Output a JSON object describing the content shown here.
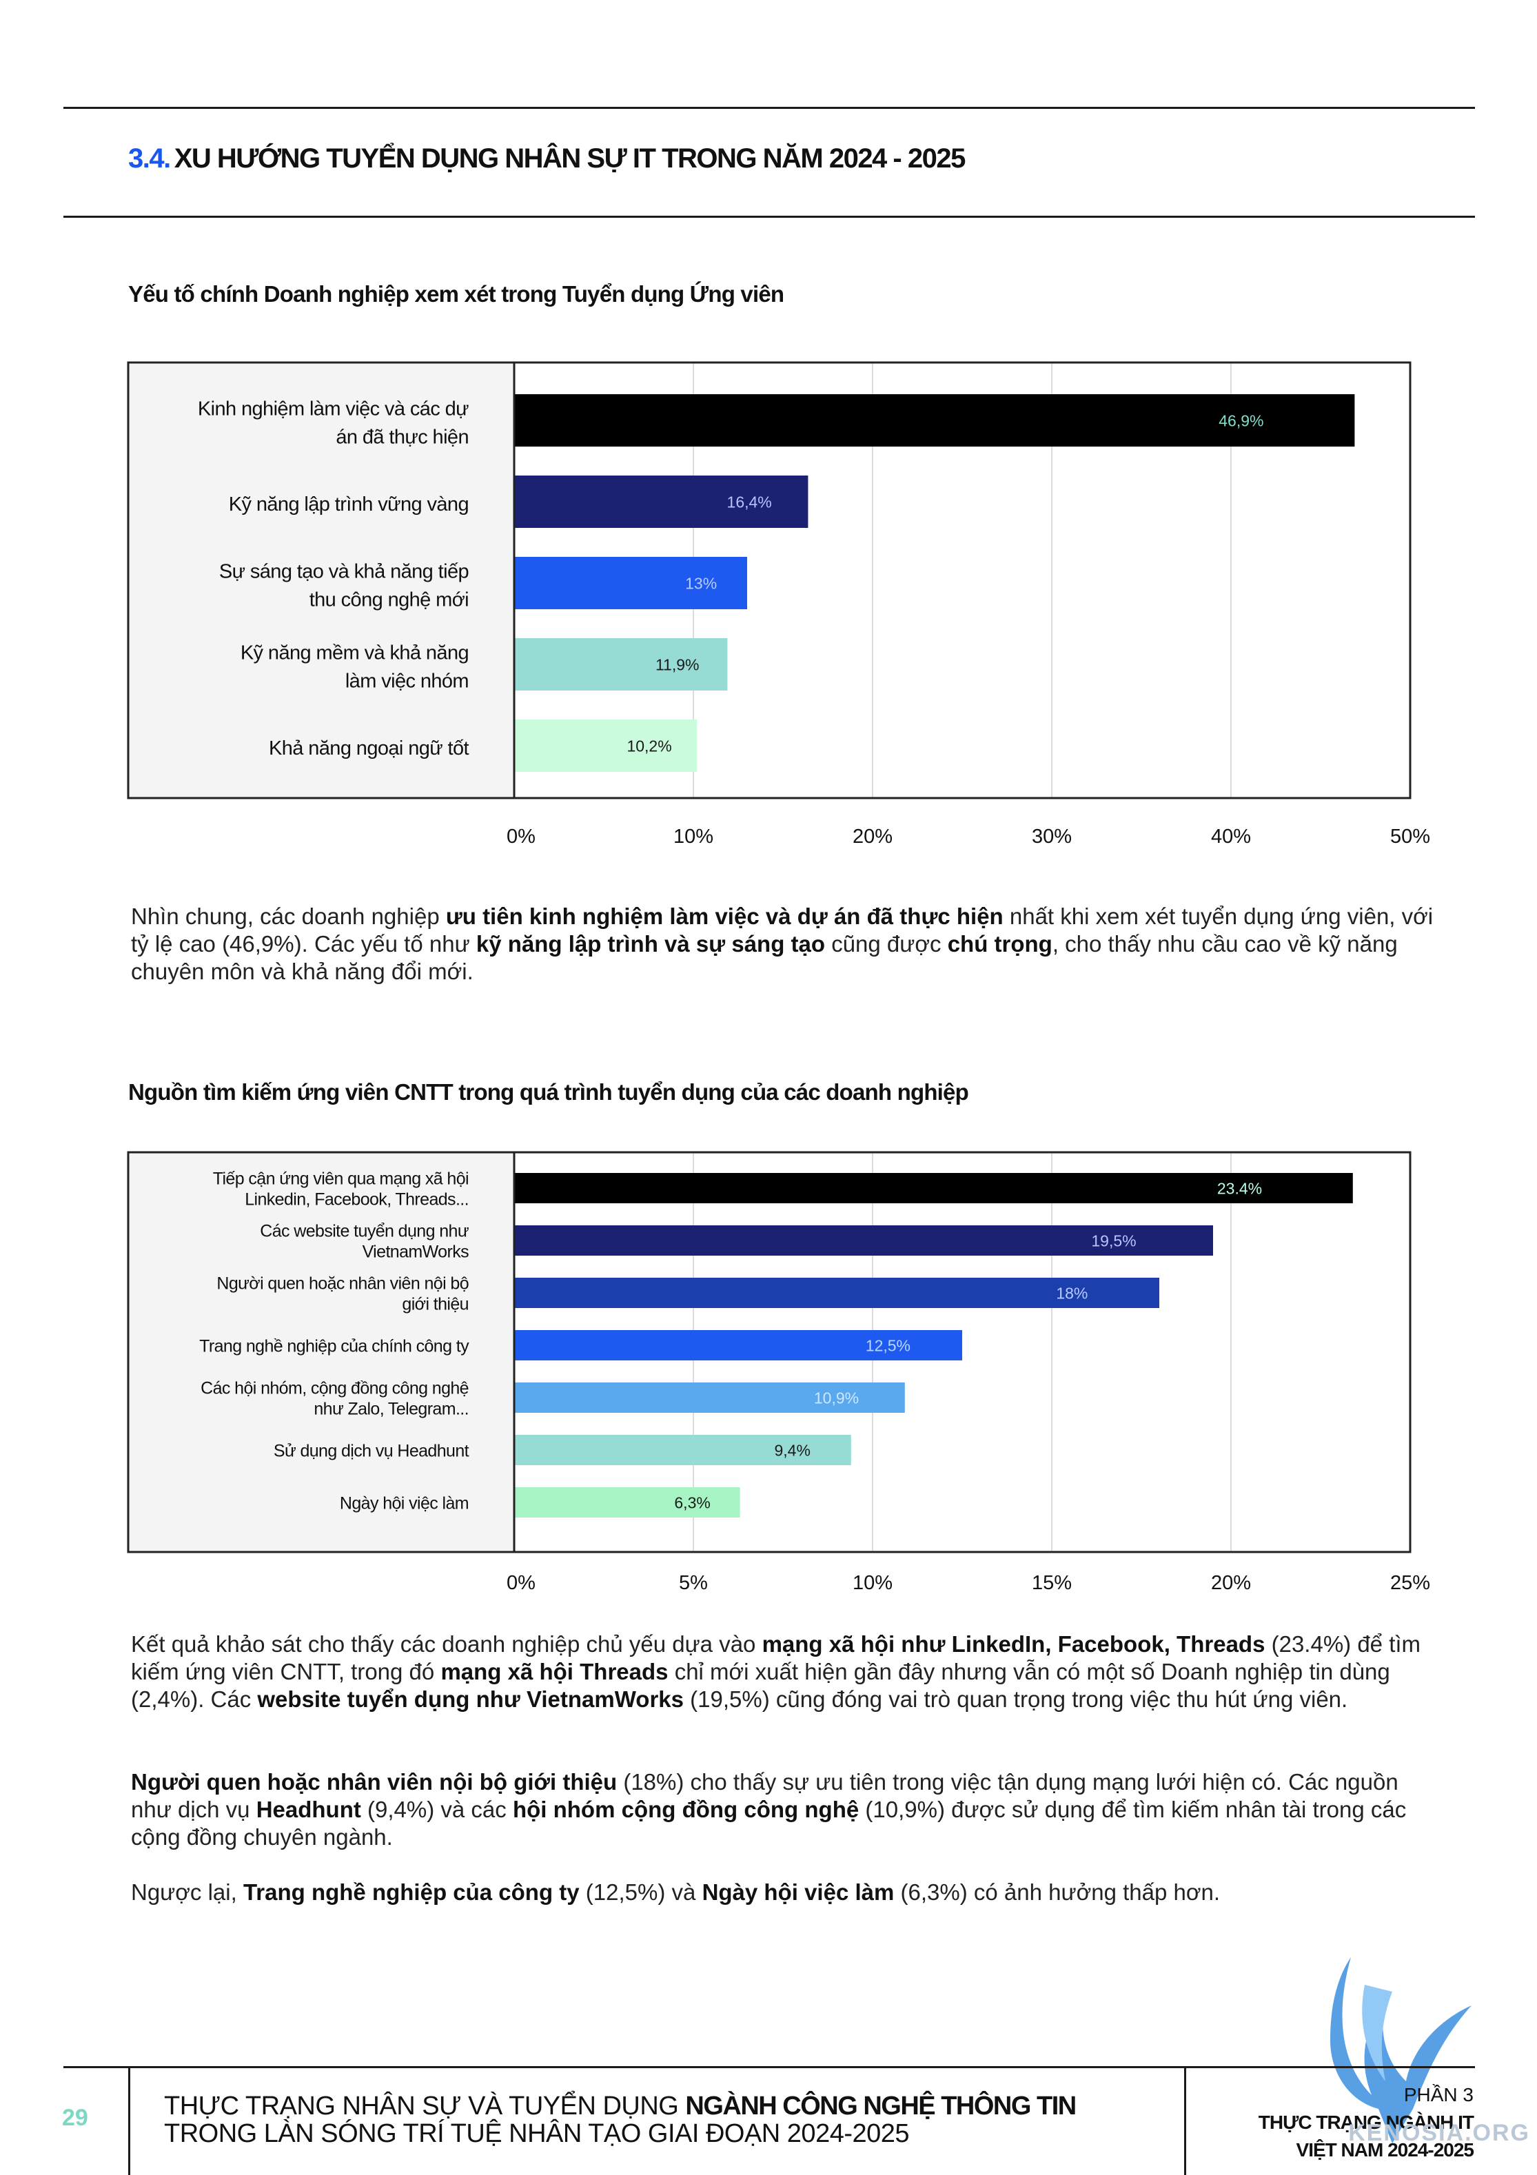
{
  "header": {
    "section_number": "3.4.",
    "section_title": "XU HƯỚNG TUYỂN DỤNG NHÂN SỰ IT TRONG NĂM 2024 - 2025"
  },
  "chart1": {
    "title": "Yếu tố chính Doanh nghiệp xem xét trong Tuyển dụng Ứng viên"
  },
  "chart2": {
    "title": "Nguồn tìm kiếm ứng viên CNTT trong quá trình tuyển dụng của các doanh nghiệp"
  },
  "chart_data": [
    {
      "type": "bar",
      "orientation": "horizontal",
      "title": "Yếu tố chính Doanh nghiệp xem xét trong Tuyển dụng Ứng viên",
      "categories": [
        [
          "Kinh nghiệm làm việc và các dự",
          "án đã thực hiện"
        ],
        [
          "Kỹ năng lập trình vững vàng"
        ],
        [
          "Sự sáng tạo và khả năng tiếp",
          "thu công nghệ mới"
        ],
        [
          "Kỹ năng mềm và khả năng",
          "làm việc nhóm"
        ],
        [
          "Khả năng ngoại ngữ tốt"
        ]
      ],
      "values": [
        46.9,
        16.4,
        13,
        11.9,
        10.2
      ],
      "data_labels": [
        "46,9%",
        "16,4%",
        "13%",
        "11,9%",
        "10,2%"
      ],
      "colors": [
        "#000000",
        "#1b2272",
        "#1f5af0",
        "#96dcd4",
        "#c9fbdc"
      ],
      "label_colors": [
        "#7ee0cc",
        "#b9c2ff",
        "#b9ccff",
        "#1a1a1a",
        "#1a1a1a"
      ],
      "xlim": [
        0,
        50
      ],
      "xticks": [
        0,
        10,
        20,
        30,
        40,
        50
      ],
      "xtick_labels": [
        "0%",
        "10%",
        "20%",
        "30%",
        "40%",
        "50%"
      ],
      "grid": true
    },
    {
      "type": "bar",
      "orientation": "horizontal",
      "title": "Nguồn tìm kiếm ứng viên CNTT trong quá trình tuyển dụng của các doanh nghiệp",
      "categories": [
        [
          "Tiếp cận ứng viên qua mạng xã hội",
          "Linkedin, Facebook, Threads..."
        ],
        [
          "Các website tuyển dụng như",
          "VietnamWorks"
        ],
        [
          "Người quen hoặc nhân viên nội bộ",
          "giới thiệu"
        ],
        [
          "Trang nghề nghiệp của chính công ty"
        ],
        [
          "Các hội nhóm, cộng đồng công nghệ",
          "như Zalo, Telegram..."
        ],
        [
          "Sử dụng dịch vụ Headhunt"
        ],
        [
          "Ngày hội việc làm"
        ]
      ],
      "values": [
        23.4,
        19.5,
        18,
        12.5,
        10.9,
        9.4,
        6.3
      ],
      "data_labels": [
        "23.4%",
        "19,5%",
        "18%",
        "12,5%",
        "10,9%",
        "9,4%",
        "6,3%"
      ],
      "colors": [
        "#000000",
        "#1b2272",
        "#1c3fae",
        "#1f5af0",
        "#5aa9ef",
        "#96dcd4",
        "#a6f4c4"
      ],
      "label_colors": [
        "#b6ffe4",
        "#b9c2ff",
        "#b9ccff",
        "#b9d6ff",
        "#cfe6ff",
        "#1a1a1a",
        "#1a1a1a"
      ],
      "xlim": [
        0,
        25
      ],
      "xticks": [
        0,
        5,
        10,
        15,
        20,
        25
      ],
      "xtick_labels": [
        "0%",
        "5%",
        "10%",
        "15%",
        "20%",
        "25%"
      ],
      "grid": true
    }
  ],
  "paragraphs": {
    "p1": [
      {
        "t": "Nhìn chung, các doanh nghiệp "
      },
      {
        "t": "ưu tiên kinh nghiệm làm việc và dự án đã thực hiện",
        "b": true
      },
      {
        "t": " nhất khi xem xét tuyển dụng ứng viên, với tỷ lệ cao (46,9%). Các yếu tố như "
      },
      {
        "t": "kỹ năng lập trình và sự sáng tạo",
        "b": true
      },
      {
        "t": " cũng được "
      },
      {
        "t": "chú trọng",
        "b": true
      },
      {
        "t": ", cho thấy nhu cầu cao về kỹ năng chuyên môn và khả năng đổi mới."
      }
    ],
    "p2": [
      {
        "t": "Kết quả khảo sát cho thấy các doanh nghiệp chủ yếu dựa vào "
      },
      {
        "t": "mạng xã hội như LinkedIn, Facebook, Threads",
        "b": true
      },
      {
        "t": " (23.4%) để tìm kiếm ứng viên CNTT, trong đó "
      },
      {
        "t": "mạng xã hội Threads",
        "b": true
      },
      {
        "t": " chỉ mới xuất hiện gần đây nhưng vẫn có một số Doanh nghiệp tin dùng (2,4%). Các "
      },
      {
        "t": "website tuyển dụng như VietnamWorks",
        "b": true
      },
      {
        "t": " (19,5%) cũng đóng vai trò quan trọng trong việc thu hút ứng viên."
      }
    ],
    "p3": [
      {
        "t": "Người quen hoặc nhân viên nội bộ giới thiệu",
        "b": true
      },
      {
        "t": " (18%) cho thấy sự ưu tiên trong việc tận dụng mạng lưới hiện có. Các nguồn như dịch vụ "
      },
      {
        "t": "Headhunt",
        "b": true
      },
      {
        "t": " (9,4%) và các "
      },
      {
        "t": "hội nhóm cộng đồng công nghệ",
        "b": true
      },
      {
        "t": " (10,9%) được sử dụng để tìm kiếm nhân tài trong các cộng đồng chuyên ngành."
      }
    ],
    "p4": [
      {
        "t": "Ngược lại, "
      },
      {
        "t": "Trang nghề nghiệp của công ty",
        "b": true
      },
      {
        "t": " (12,5%) và "
      },
      {
        "t": "Ngày hội việc làm",
        "b": true
      },
      {
        "t": " (6,3%) có ảnh hưởng thấp hơn."
      }
    ]
  },
  "footer": {
    "page_number": "29",
    "title_line1_normal": "THỰC TRẠNG NHÂN SỰ VÀ TUYỂN DỤNG ",
    "title_line1_bold": "NGÀNH CÔNG NGHỆ THÔNG TIN",
    "title_line2": "TRONG LÀN SÓNG TRÍ TUỆ NHÂN TẠO GIAI ĐOẠN 2024-2025",
    "part_label": "PHẦN 3",
    "part_title_line1": "THỰC TRẠNG NGÀNH IT",
    "part_title_line2": "VIỆT NAM 2024-2025",
    "watermark_text": "KENOSIA.ORG"
  }
}
